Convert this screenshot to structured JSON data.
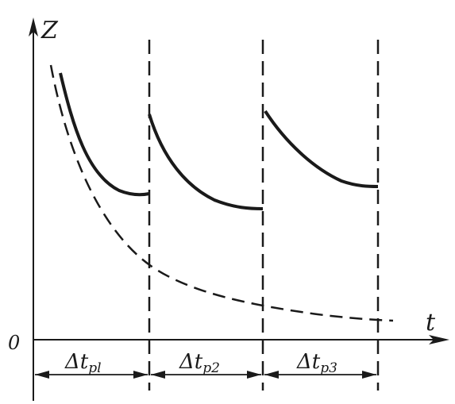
{
  "axes": {
    "y_label": "Z",
    "x_label": "t",
    "origin_label": "0"
  },
  "intervals": [
    {
      "symbol": "Δt",
      "subscript": "pl"
    },
    {
      "symbol": "Δt",
      "subscript": "p2"
    },
    {
      "symbol": "Δt",
      "subscript": "p3"
    }
  ],
  "colors": {
    "ink": "#1a1a1a",
    "background": "#ffffff"
  }
}
